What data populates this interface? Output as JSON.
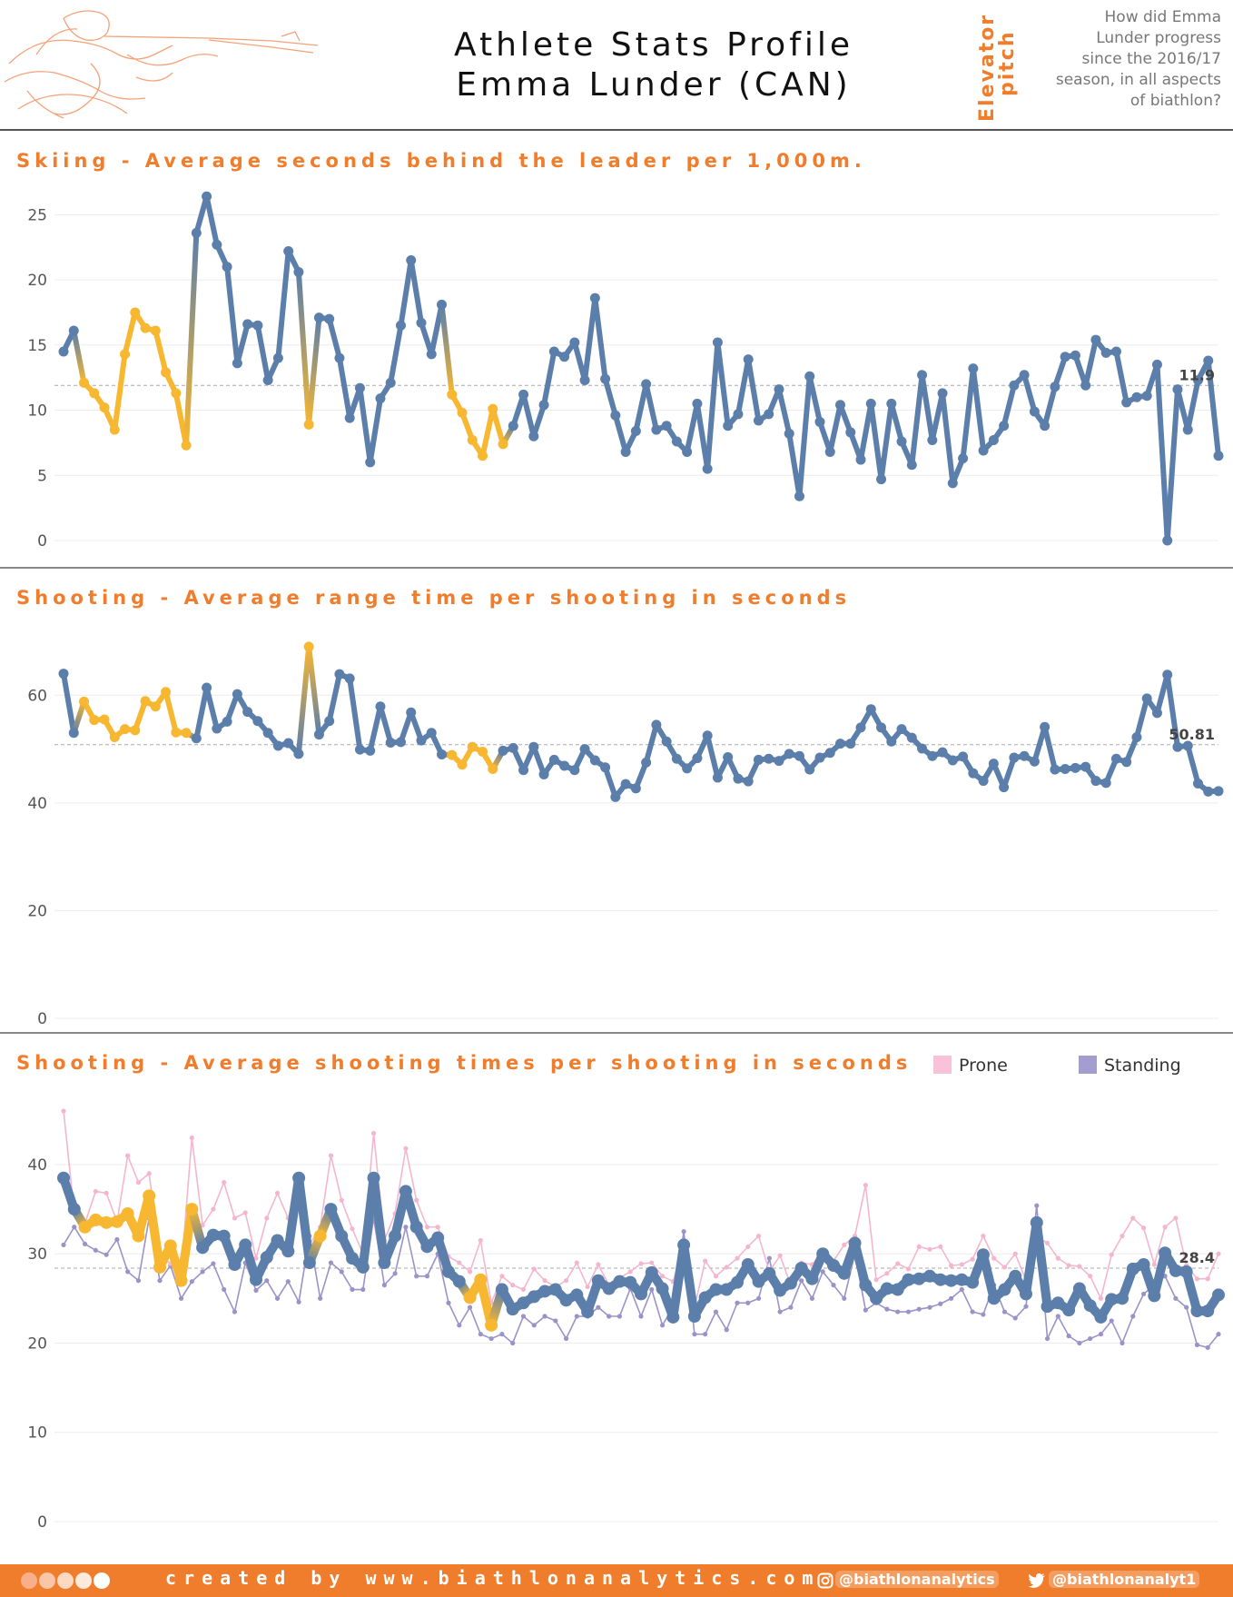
{
  "header": {
    "title_line1": "Athlete Stats Profile",
    "title_line2": "Emma Lunder (CAN)",
    "elevator_label": "Elevator",
    "pitch_label": "pitch",
    "question_lines": [
      "How did Emma",
      "Lunder progress",
      "since the 2016/17",
      "season, in all aspects",
      "of biathlon?"
    ]
  },
  "colors": {
    "accent": "#f07d2c",
    "blue": "#5b7faa",
    "yellow": "#f7b731",
    "prone": "#f4b6cf",
    "standing": "#9a93c8"
  },
  "sections": {
    "skiing_title": "Skiing - Average seconds behind the leader per 1,000m.",
    "range_title": "Shooting - Average range time per shooting in seconds",
    "shoot_title": "Shooting - Average shooting times per shooting in seconds"
  },
  "legend": {
    "prone": "Prone",
    "standing": "Standing"
  },
  "chart_data": [
    {
      "type": "line",
      "id": "skiing",
      "title": "Skiing - Average seconds behind the leader per 1,000m.",
      "ylim": [
        0,
        26
      ],
      "yticks": [
        0,
        5,
        10,
        15,
        20,
        25
      ],
      "reference_label": "11.9",
      "reference_value": 11.9,
      "highlight_ranges": [
        [
          2,
          12
        ],
        [
          24,
          24
        ],
        [
          38,
          43
        ]
      ],
      "series": [
        {
          "name": "Skiing",
          "values": [
            14.5,
            16.1,
            12.1,
            11.3,
            10.2,
            8.5,
            14.3,
            17.5,
            16.3,
            16.1,
            12.9,
            11.3,
            7.3,
            23.6,
            26.4,
            22.7,
            21.0,
            13.6,
            16.6,
            16.5,
            12.3,
            14.0,
            22.2,
            20.6,
            8.9,
            17.1,
            17.0,
            14.0,
            9.4,
            11.7,
            6.0,
            10.9,
            12.1,
            16.5,
            21.5,
            16.7,
            14.3,
            18.1,
            11.2,
            9.8,
            7.7,
            6.5,
            10.1,
            7.4,
            8.8,
            11.2,
            8.0,
            10.4,
            14.5,
            14.1,
            15.2,
            12.3,
            18.6,
            12.4,
            9.6,
            6.8,
            8.4,
            12.0,
            8.5,
            8.8,
            7.6,
            6.8,
            10.5,
            5.5,
            15.2,
            8.8,
            9.7,
            13.9,
            9.2,
            9.7,
            11.6,
            8.2,
            3.4,
            12.6,
            9.1,
            6.8,
            10.4,
            8.3,
            6.2,
            10.5,
            4.7,
            10.5,
            7.6,
            5.8,
            12.7,
            7.7,
            11.3,
            4.4,
            6.3,
            13.2,
            6.9,
            7.7,
            8.8,
            11.9,
            12.7,
            9.9,
            8.8,
            11.8,
            14.1,
            14.2,
            11.9,
            15.4,
            14.4,
            14.5,
            10.6,
            11.0,
            11.1,
            13.5,
            0.0,
            11.6,
            8.5,
            12.3,
            13.8,
            6.5
          ]
        }
      ]
    },
    {
      "type": "line",
      "id": "range",
      "title": "Shooting - Average range time per shooting in seconds",
      "ylim": [
        0,
        70
      ],
      "yticks": [
        0,
        20,
        40,
        60
      ],
      "reference_label": "50.81",
      "reference_value": 50.81,
      "highlight_ranges": [
        [
          2,
          12
        ],
        [
          24,
          24
        ],
        [
          38,
          42
        ]
      ],
      "series": [
        {
          "name": "Range time",
          "values": [
            64.0,
            53.0,
            58.8,
            55.4,
            55.5,
            52.2,
            53.7,
            53.5,
            58.9,
            57.9,
            60.6,
            53.1,
            53.0,
            52.0,
            61.4,
            53.8,
            55.1,
            60.2,
            56.9,
            55.2,
            53.0,
            50.6,
            51.1,
            49.1,
            69.0,
            52.7,
            55.2,
            63.9,
            63.1,
            49.9,
            49.7,
            57.9,
            51.2,
            51.3,
            56.8,
            51.6,
            53.0,
            49.0,
            48.9,
            47.1,
            50.4,
            49.5,
            46.3,
            49.7,
            50.2,
            46.1,
            50.4,
            45.3,
            48.0,
            46.9,
            46.1,
            50.0,
            47.9,
            46.6,
            41.1,
            43.5,
            42.7,
            47.5,
            54.5,
            51.4,
            48.2,
            46.4,
            48.3,
            52.5,
            44.7,
            48.5,
            44.5,
            44.0,
            48.0,
            48.2,
            47.8,
            49.1,
            48.7,
            46.2,
            48.4,
            49.3,
            51.0,
            51.0,
            54.0,
            57.4,
            54.0,
            51.4,
            53.7,
            52.1,
            50.1,
            48.7,
            49.4,
            47.9,
            48.6,
            45.5,
            44.1,
            47.3,
            42.9,
            48.4,
            48.7,
            47.7,
            54.1,
            46.2,
            46.3,
            46.5,
            46.7,
            44.1,
            43.7,
            48.2,
            47.6,
            52.2,
            59.4,
            56.7,
            63.8,
            50.4,
            50.6,
            43.6,
            42.1,
            42.2
          ]
        }
      ]
    },
    {
      "type": "line",
      "id": "shooting",
      "title": "Shooting - Average shooting times per shooting in seconds",
      "ylim": [
        0,
        46
      ],
      "yticks": [
        0,
        10,
        20,
        30,
        40
      ],
      "reference_label": "28.4",
      "reference_value": 28.4,
      "highlight_ranges": [
        [
          2,
          12
        ],
        [
          24,
          24
        ],
        [
          38,
          40
        ]
      ],
      "series": [
        {
          "name": "Overall",
          "values": [
            38.5,
            35.0,
            33.0,
            33.8,
            33.5,
            33.6,
            34.5,
            32.0,
            36.5,
            28.5,
            30.9,
            27.0,
            35.0,
            30.7,
            32.1,
            32.0,
            28.8,
            31.0,
            27.1,
            29.6,
            31.5,
            30.3,
            38.5,
            29.0,
            32.0,
            35.0,
            32.0,
            29.5,
            28.5,
            38.5,
            29.0,
            32.0,
            37.0,
            33.0,
            30.8,
            31.8,
            28.0,
            26.9,
            25.1,
            27.1,
            22.0,
            26.0,
            23.8,
            24.5,
            25.2,
            25.8,
            26.0,
            24.8,
            25.4,
            23.5,
            27.0,
            26.1,
            26.9,
            26.8,
            25.5,
            27.9,
            26.1,
            22.9,
            31.0,
            23.0,
            25.1,
            26.0,
            26.0,
            26.8,
            28.8,
            26.9,
            27.8,
            25.9,
            26.7,
            28.4,
            27.2,
            30.0,
            28.7,
            27.8,
            31.2,
            26.5,
            25.0,
            26.1,
            26.0,
            27.1,
            27.2,
            27.5,
            27.1,
            27.0,
            27.1,
            26.8,
            29.9,
            25.0,
            26.0,
            27.5,
            25.5,
            33.5,
            24.1,
            24.5,
            23.7,
            26.1,
            24.2,
            22.9,
            24.9,
            25.0,
            28.3,
            28.8,
            25.3,
            30.1,
            28.1,
            28.0,
            23.6,
            23.6,
            25.4
          ]
        },
        {
          "name": "Prone",
          "values": [
            46.0,
            34.6,
            33.4,
            37.0,
            36.8,
            33.6,
            41.0,
            38.0,
            39.0,
            29.8,
            28.9,
            28.0,
            43.0,
            33.2,
            35.0,
            38.0,
            34.0,
            34.6,
            29.5,
            34.0,
            36.8,
            34.0,
            38.0,
            31.0,
            33.0,
            41.0,
            36.0,
            32.8,
            30.0,
            43.5,
            31.5,
            34.5,
            41.8,
            36.0,
            33.0,
            33.0,
            29.7,
            29.0,
            28.0,
            31.5,
            24.5,
            27.5,
            26.5,
            26.0,
            28.3,
            27.0,
            26.3,
            27.0,
            29.0,
            26.3,
            28.8,
            26.5,
            27.3,
            28.0,
            28.9,
            29.0,
            27.5,
            26.9,
            31.0,
            24.0,
            29.2,
            27.5,
            28.5,
            29.5,
            30.8,
            32.0,
            28.0,
            29.8,
            26.5,
            29.0,
            28.8,
            30.3,
            29.2,
            31.0,
            32.0,
            37.7,
            27.1,
            27.8,
            28.9,
            28.3,
            30.8,
            30.5,
            30.8,
            28.7,
            28.8,
            29.4,
            32.0,
            29.5,
            28.5,
            30.0,
            27.0,
            32.0,
            31.2,
            29.5,
            28.7,
            28.6,
            27.5,
            25.0,
            29.9,
            32.0,
            34.0,
            32.9,
            28.8,
            33.0,
            34.0,
            28.7,
            27.2,
            27.2,
            30.0
          ]
        },
        {
          "name": "Standing",
          "values": [
            31.0,
            33.0,
            31.1,
            30.4,
            29.9,
            31.6,
            28.0,
            27.0,
            34.0,
            27.0,
            28.7,
            25.0,
            26.9,
            28.0,
            28.9,
            26.0,
            23.5,
            29.0,
            25.9,
            27.0,
            25.0,
            26.9,
            24.6,
            32.0,
            25.0,
            29.0,
            28.0,
            26.0,
            26.0,
            34.0,
            26.5,
            27.8,
            33.0,
            27.5,
            27.5,
            30.0,
            24.5,
            22.0,
            24.0,
            21.0,
            20.5,
            21.0,
            20.0,
            23.0,
            22.0,
            23.0,
            22.5,
            20.5,
            23.0,
            23.0,
            24.0,
            23.0,
            23.0,
            26.1,
            23.0,
            26.0,
            22.0,
            24.0,
            32.5,
            21.0,
            21.0,
            23.5,
            21.5,
            24.5,
            24.5,
            25.0,
            29.5,
            23.5,
            24.0,
            27.0,
            25.0,
            28.0,
            26.5,
            25.0,
            30.0,
            23.7,
            24.5,
            23.8,
            23.5,
            23.5,
            23.8,
            24.0,
            24.4,
            25.0,
            26.0,
            23.5,
            23.2,
            26.5,
            23.5,
            22.8,
            24.1,
            35.4,
            20.5,
            23.0,
            20.8,
            20.0,
            20.5,
            21.0,
            22.5,
            20.0,
            23.0,
            25.5,
            26.5,
            27.5,
            25.0,
            24.0,
            19.8,
            19.5,
            21.0
          ]
        }
      ]
    }
  ],
  "footer": {
    "credit": "created by www.biathlonanalytics.com",
    "instagram": "@biathlonanalytics",
    "twitter": "@biathlonanalyt1"
  }
}
